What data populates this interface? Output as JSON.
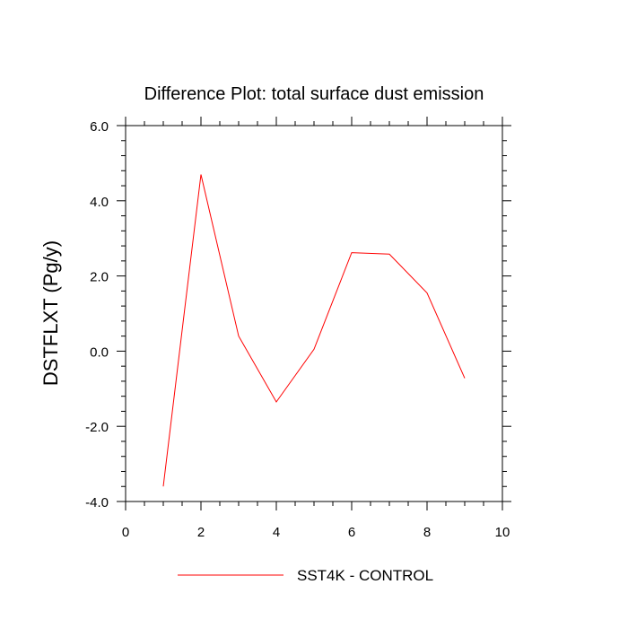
{
  "chart_data": {
    "type": "line",
    "title": "Difference Plot: total surface dust emission",
    "xlabel": "",
    "ylabel": "DSTFLXT  (Pg/y)",
    "xlim": [
      0,
      10
    ],
    "ylim": [
      -4.0,
      6.0
    ],
    "x_ticks": [
      0,
      2,
      4,
      6,
      8,
      10
    ],
    "x_tick_labels": [
      "0",
      "2",
      "4",
      "6",
      "8",
      "10"
    ],
    "y_ticks": [
      -4.0,
      -2.0,
      0.0,
      2.0,
      4.0,
      6.0
    ],
    "y_tick_labels": [
      "-4.0",
      "-2.0",
      "0.0",
      "2.0",
      "4.0",
      "6.0"
    ],
    "grid": false,
    "legend_position": "bottom",
    "series": [
      {
        "name": "SST4K - CONTROL",
        "color": "#ff0000",
        "x": [
          1,
          2,
          3,
          4,
          5,
          6,
          7,
          8,
          9
        ],
        "y": [
          -3.6,
          4.7,
          0.4,
          -1.35,
          0.05,
          2.62,
          2.58,
          1.55,
          -0.72
        ]
      }
    ]
  }
}
